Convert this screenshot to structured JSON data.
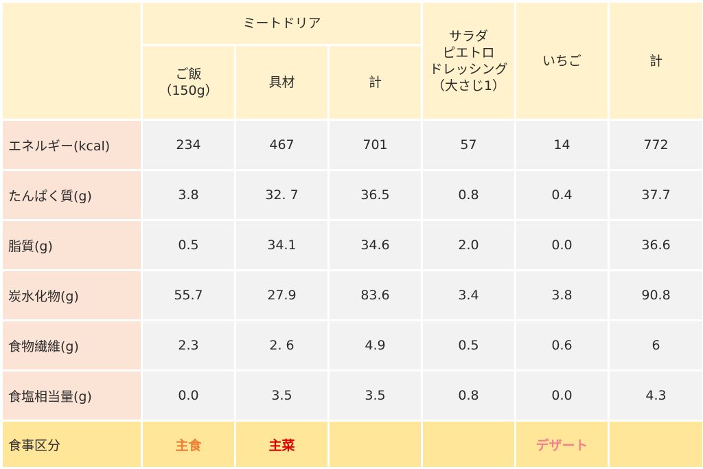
{
  "header": {
    "group_main": "ミートドリア",
    "rice": "ご飯\n（150g）",
    "ingredients": "具材",
    "subtotal": "計",
    "salad": "サラダ\nピエトロ\nドレッシング\n（大さじ1）",
    "strawberry": "いちご",
    "total": "計"
  },
  "rows": [
    {
      "label": "エネルギー(kcal)",
      "values": [
        "234",
        "467",
        "701",
        "57",
        "14",
        "772"
      ]
    },
    {
      "label": "たんぱく質(g)",
      "values": [
        "3.8",
        "32. 7",
        "36.5",
        "0.8",
        "0.4",
        "37.7"
      ]
    },
    {
      "label": "脂質(g)",
      "values": [
        "0.5",
        "34.1",
        "34.6",
        "2.0",
        "0.0",
        "36.6"
      ]
    },
    {
      "label": "炭水化物(g)",
      "values": [
        "55.7",
        "27.9",
        "83.6",
        "3.4",
        "3.8",
        "90.8"
      ]
    },
    {
      "label": "食物繊維(g)",
      "values": [
        "2.3",
        "2. 6",
        "4.9",
        "0.5",
        "0.6",
        "6"
      ]
    },
    {
      "label": "食塩相当量(g)",
      "values": [
        "0.0",
        "3.5",
        "3.5",
        "0.8",
        "0.0",
        "4.3"
      ]
    }
  ],
  "footer": {
    "label": "食事区分",
    "staple": "主食",
    "main_dish": "主菜",
    "dessert": "デザート"
  },
  "colors": {
    "header_bg": "#fff2cc",
    "label_bg": "#fbe3d6",
    "cell_bg": "#f2f2f2",
    "footer_bg": "#ffe699",
    "staple_color": "#ed7d31",
    "main_dish_color": "#e00000",
    "dessert_color": "#f4808a"
  }
}
